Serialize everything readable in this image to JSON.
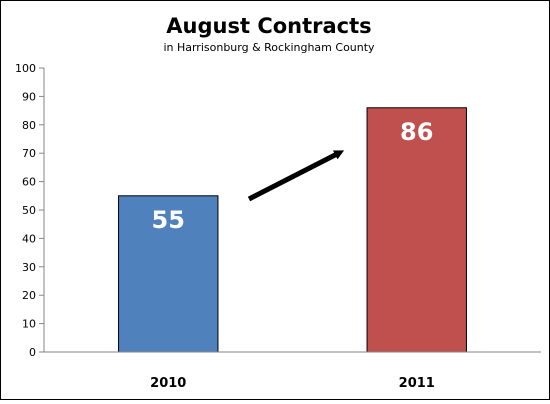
{
  "chart_data": {
    "type": "bar",
    "title": "August Contracts",
    "subtitle": "in Harrisonburg & Rockingham County",
    "categories": [
      "2010",
      "2011"
    ],
    "values": [
      55,
      86
    ],
    "data_labels": [
      "55",
      "86"
    ],
    "colors": [
      "#4f81bd",
      "#c0504d"
    ],
    "xlabel": "",
    "ylabel": "",
    "ylim": [
      0,
      100
    ],
    "yticks": [
      0,
      10,
      20,
      30,
      40,
      50,
      60,
      70,
      80,
      90,
      100
    ],
    "grid": false,
    "legend": "none",
    "annotation": "arrow pointing up from 2010 bar toward 2011 bar"
  }
}
